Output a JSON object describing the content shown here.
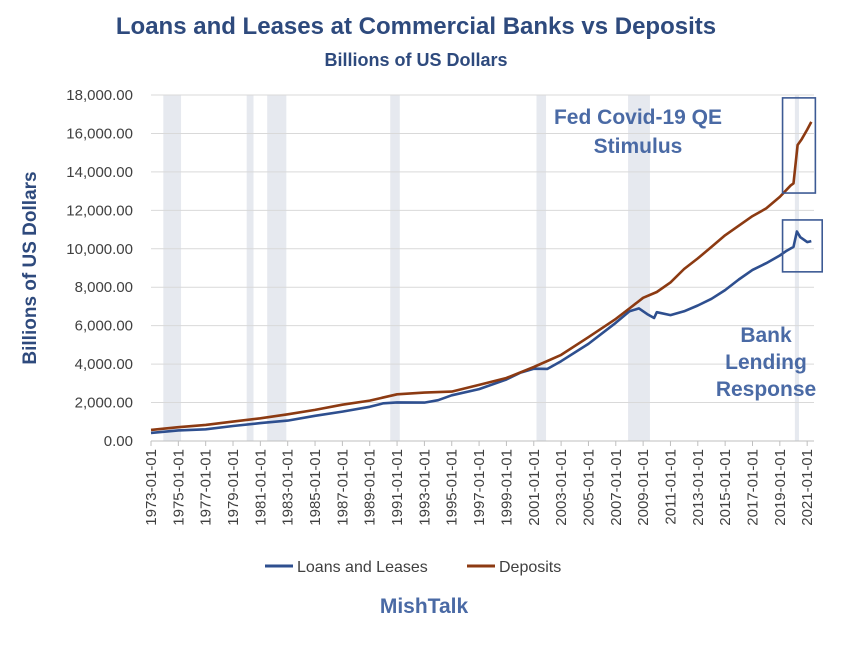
{
  "chart_data": {
    "type": "line",
    "title": "Loans and Leases at Commercial Banks vs Deposits",
    "subtitle": "Billions of US Dollars",
    "ylabel": "Billions of US Dollars",
    "ylim": [
      0,
      18000
    ],
    "y_ticks": [
      "0.00",
      "2,000.00",
      "4,000.00",
      "6,000.00",
      "8,000.00",
      "10,000.00",
      "12,000.00",
      "14,000.00",
      "16,000.00",
      "18,000.00"
    ],
    "xlim": [
      1973.0,
      2021.5
    ],
    "x_ticks": [
      "1973-01-01",
      "1975-01-01",
      "1977-01-01",
      "1979-01-01",
      "1981-01-01",
      "1983-01-01",
      "1985-01-01",
      "1987-01-01",
      "1989-01-01",
      "1991-01-01",
      "1993-01-01",
      "1995-01-01",
      "1997-01-01",
      "1999-01-01",
      "2001-01-01",
      "2003-01-01",
      "2005-01-01",
      "2007-01-01",
      "2009-01-01",
      "2011-01-01",
      "2013-01-01",
      "2015-01-01",
      "2017-01-01",
      "2019-01-01",
      "2021-01-01"
    ],
    "grid": "horizontal",
    "legend_position": "bottom",
    "recessions": [
      [
        1973.9,
        1975.2
      ],
      [
        1980.0,
        1980.5
      ],
      [
        1981.5,
        1982.9
      ],
      [
        1990.5,
        1991.2
      ],
      [
        2001.2,
        2001.9
      ],
      [
        2007.9,
        2009.5
      ],
      [
        2020.1,
        2020.4
      ]
    ],
    "series": [
      {
        "name": "Loans and Leases",
        "color": "#2e4f8f",
        "x": [
          1973,
          1975,
          1977,
          1979,
          1981,
          1983,
          1985,
          1987,
          1989,
          1990,
          1991,
          1993,
          1994,
          1995,
          1997,
          1999,
          2000,
          2001,
          2002,
          2003,
          2005,
          2007,
          2008,
          2008.7,
          2009.3,
          2009.8,
          2010,
          2011,
          2012,
          2013,
          2014,
          2015,
          2016,
          2017,
          2018,
          2019,
          2019.5,
          2020,
          2020.25,
          2020.5,
          2020.8,
          2021,
          2021.3
        ],
        "values": [
          420,
          550,
          610,
          780,
          930,
          1060,
          1310,
          1530,
          1780,
          1960,
          2010,
          2000,
          2120,
          2380,
          2700,
          3200,
          3550,
          3760,
          3750,
          4150,
          5050,
          6150,
          6750,
          6900,
          6600,
          6400,
          6700,
          6550,
          6750,
          7050,
          7400,
          7850,
          8400,
          8900,
          9250,
          9650,
          9900,
          10100,
          10900,
          10600,
          10450,
          10350,
          10400
        ]
      },
      {
        "name": "Deposits",
        "color": "#8c3a12",
        "x": [
          1973,
          1975,
          1977,
          1979,
          1981,
          1983,
          1985,
          1987,
          1989,
          1991,
          1993,
          1995,
          1997,
          1999,
          2001,
          2003,
          2005,
          2007,
          2008,
          2009,
          2010,
          2011,
          2012,
          2013,
          2014,
          2015,
          2016,
          2017,
          2018,
          2019,
          2019.8,
          2020,
          2020.3,
          2020.6,
          2021,
          2021.3
        ],
        "values": [
          580,
          720,
          840,
          1010,
          1180,
          1390,
          1620,
          1890,
          2100,
          2430,
          2520,
          2570,
          2920,
          3280,
          3850,
          4480,
          5400,
          6350,
          6900,
          7450,
          7750,
          8250,
          8950,
          9500,
          10100,
          10700,
          11200,
          11700,
          12100,
          12700,
          13300,
          13400,
          15400,
          15700,
          16200,
          16600
        ]
      }
    ],
    "annotations": [
      {
        "lines": [
          "Fed Covid-19 QE",
          "Stimulus"
        ]
      },
      {
        "lines": [
          "Bank",
          "Lending",
          "Response"
        ]
      }
    ],
    "boxes": [
      {
        "x_range": [
          2019.2,
          2021.6
        ],
        "y_range": [
          12900,
          17850
        ]
      },
      {
        "x_range": [
          2019.2,
          2022.1
        ],
        "y_range": [
          8800,
          11500
        ]
      }
    ],
    "brand": "MishTalk"
  }
}
